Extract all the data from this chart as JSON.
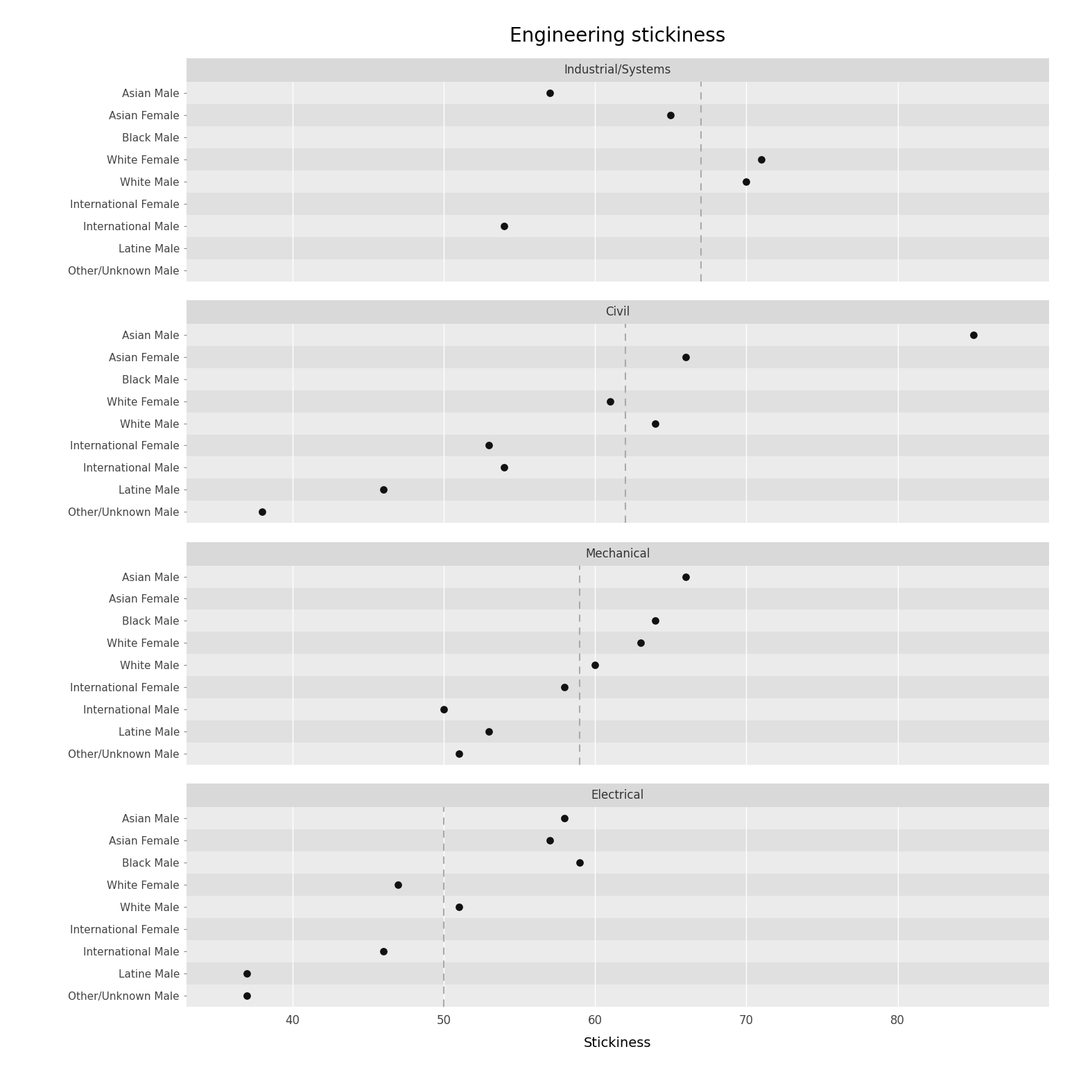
{
  "title": "Engineering stickiness",
  "xlabel": "Stickiness",
  "panels": [
    "Industrial/Systems",
    "Civil",
    "Mechanical",
    "Electrical"
  ],
  "categories": [
    "Asian Male",
    "Asian Female",
    "Black Male",
    "White Female",
    "White Male",
    "International Female",
    "International Male",
    "Latine Male",
    "Other/Unknown Male"
  ],
  "data": {
    "Industrial/Systems": {
      "Asian Male": 57,
      "Asian Female": 65,
      "Black Male": null,
      "White Female": 71,
      "White Male": 70,
      "International Female": null,
      "International Male": 54,
      "Latine Male": null,
      "Other/Unknown Male": null,
      "dashed_line": 67
    },
    "Civil": {
      "Asian Male": 85,
      "Asian Female": 66,
      "Black Male": null,
      "White Female": 61,
      "White Male": 64,
      "International Female": 53,
      "International Male": 54,
      "Latine Male": 46,
      "Other/Unknown Male": 38,
      "dashed_line": 62
    },
    "Mechanical": {
      "Asian Male": 66,
      "Asian Female": null,
      "Black Male": 64,
      "White Female": 63,
      "White Male": 60,
      "International Female": 58,
      "International Male": 50,
      "Latine Male": 53,
      "Other/Unknown Male": 51,
      "dashed_line": 59
    },
    "Electrical": {
      "Asian Male": 58,
      "Asian Female": 57,
      "Black Male": 59,
      "White Female": 47,
      "White Male": 51,
      "International Female": null,
      "International Male": 46,
      "Latine Male": 37,
      "Other/Unknown Male": 37,
      "dashed_line": 50
    }
  },
  "xlim": [
    33,
    90
  ],
  "xticks": [
    40,
    50,
    60,
    70,
    80
  ],
  "strip_bg": "#d9d9d9",
  "row_colors": [
    "#ebebeb",
    "#e0e0e0"
  ],
  "dot_color": "#111111",
  "dot_size": 60,
  "dashed_color": "#aaaaaa",
  "grid_color": "#ffffff",
  "title_fontsize": 20,
  "strip_fontsize": 12,
  "tick_fontsize": 11,
  "xlabel_fontsize": 14
}
